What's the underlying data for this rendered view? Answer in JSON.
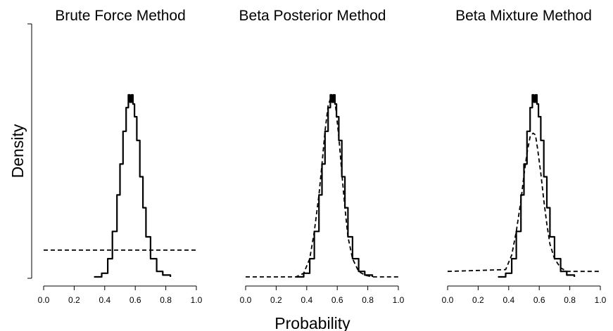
{
  "chart_data": {
    "type": "line",
    "xlabel": "Probability",
    "ylabel": "Density",
    "xlim": [
      0,
      1
    ],
    "xticks": [
      "0.0",
      "0.2",
      "0.4",
      "0.6",
      "0.8",
      "1.0"
    ],
    "grid": false,
    "panels": [
      {
        "title": "Brute Force Method",
        "series": [
          {
            "style": "solid",
            "x": [
              0.33,
              0.38,
              0.42,
              0.45,
              0.48,
              0.5,
              0.52,
              0.54,
              0.555,
              0.565,
              0.575,
              0.585,
              0.595,
              0.61,
              0.63,
              0.65,
              0.67,
              0.7,
              0.74,
              0.78,
              0.83
            ],
            "y": [
              0.0,
              0.02,
              0.1,
              0.25,
              0.45,
              0.62,
              0.8,
              0.93,
              1.0,
              0.96,
              1.0,
              0.95,
              0.88,
              0.75,
              0.55,
              0.38,
              0.22,
              0.1,
              0.03,
              0.01,
              0.0
            ]
          },
          {
            "style": "dashed",
            "x": [
              0.0,
              1.0
            ],
            "y": [
              0.147,
              0.147
            ]
          }
        ]
      },
      {
        "title": "Beta Posterior Method",
        "series": [
          {
            "style": "solid",
            "x": [
              0.33,
              0.38,
              0.42,
              0.45,
              0.48,
              0.5,
              0.52,
              0.54,
              0.555,
              0.565,
              0.575,
              0.585,
              0.595,
              0.61,
              0.63,
              0.65,
              0.67,
              0.7,
              0.74,
              0.78,
              0.83
            ],
            "y": [
              0.0,
              0.02,
              0.1,
              0.25,
              0.45,
              0.62,
              0.8,
              0.93,
              1.0,
              0.96,
              1.0,
              0.95,
              0.88,
              0.75,
              0.55,
              0.38,
              0.22,
              0.1,
              0.03,
              0.01,
              0.0
            ]
          },
          {
            "style": "dashed",
            "x": [
              0.0,
              0.33,
              0.38,
              0.42,
              0.45,
              0.48,
              0.5,
              0.52,
              0.54,
              0.56,
              0.575,
              0.59,
              0.61,
              0.63,
              0.65,
              0.67,
              0.7,
              0.74,
              0.78,
              0.83,
              1.0
            ],
            "y": [
              0.0,
              0.0,
              0.02,
              0.1,
              0.25,
              0.45,
              0.62,
              0.8,
              0.94,
              0.99,
              1.0,
              0.93,
              0.77,
              0.57,
              0.38,
              0.22,
              0.1,
              0.03,
              0.01,
              0.0,
              0.0
            ]
          }
        ]
      },
      {
        "title": "Beta Mixture Method",
        "series": [
          {
            "style": "solid",
            "x": [
              0.33,
              0.38,
              0.42,
              0.45,
              0.48,
              0.5,
              0.52,
              0.54,
              0.555,
              0.565,
              0.575,
              0.585,
              0.595,
              0.61,
              0.63,
              0.65,
              0.67,
              0.7,
              0.74,
              0.78,
              0.83
            ],
            "y": [
              0.0,
              0.02,
              0.1,
              0.25,
              0.45,
              0.62,
              0.8,
              0.93,
              1.0,
              0.96,
              1.0,
              0.95,
              0.88,
              0.75,
              0.55,
              0.38,
              0.22,
              0.1,
              0.03,
              0.01,
              0.0
            ]
          },
          {
            "style": "dashed",
            "x": [
              0.0,
              0.38,
              0.42,
              0.45,
              0.48,
              0.5,
              0.52,
              0.54,
              0.56,
              0.575,
              0.59,
              0.61,
              0.63,
              0.65,
              0.67,
              0.7,
              0.74,
              0.78,
              1.0
            ],
            "y": [
              0.03,
              0.04,
              0.12,
              0.25,
              0.42,
              0.56,
              0.68,
              0.77,
              0.79,
              0.78,
              0.7,
              0.57,
              0.42,
              0.29,
              0.18,
              0.1,
              0.05,
              0.03,
              0.03
            ]
          }
        ]
      }
    ]
  }
}
